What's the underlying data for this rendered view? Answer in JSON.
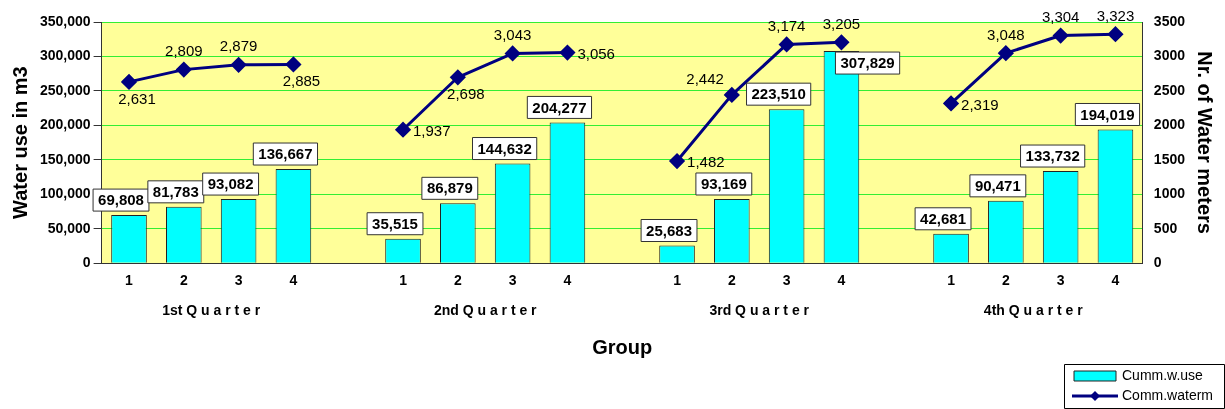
{
  "chart_data": {
    "type": "bar",
    "xlabel": "Group",
    "ylabel": "Water use in m3",
    "y2label": "Nr. of Water meters",
    "categories": [
      "1",
      "2",
      "3",
      "4",
      null,
      "1",
      "2",
      "3",
      "4",
      null,
      "1",
      "2",
      "3",
      "4",
      null,
      "1",
      "2",
      "3",
      "4"
    ],
    "series": [
      {
        "name": "Cumm.w.use",
        "color": "#00ffff",
        "values": [
          69808,
          81783,
          93082,
          136667,
          null,
          35515,
          86879,
          144632,
          204277,
          null,
          25683,
          93169,
          223510,
          307829,
          null,
          42681,
          90471,
          133732,
          194019
        ],
        "value_labels": [
          "69,808",
          "81,783",
          "93,082",
          "136,667",
          null,
          "35,515",
          "86,879",
          "144,632",
          "204,277",
          null,
          "25,683",
          "93,169",
          "223,510",
          "307,829",
          null,
          "42,681",
          "90,471",
          "133,732",
          "194,019"
        ]
      },
      {
        "name": "Comm.waterm",
        "type": "line",
        "axis": "y2",
        "color": "#000080",
        "values": [
          2631,
          2809,
          2879,
          2885,
          null,
          1937,
          2698,
          3043,
          3056,
          null,
          1482,
          2442,
          3174,
          3205,
          null,
          2319,
          3048,
          3304,
          3323
        ],
        "value_labels": [
          "2,631",
          "2,809",
          "2,879",
          "2,885",
          null,
          "1,937",
          "2,698",
          "3,043",
          "3,056",
          null,
          "1,482",
          "2,442",
          "3,174",
          "3,205",
          null,
          "2,319",
          "3,048",
          "3,304",
          "3,323"
        ]
      }
    ],
    "ylim": [
      0,
      350000
    ],
    "yticks": [
      {
        "value": 0,
        "label": "0"
      },
      {
        "value": 50000,
        "label": "50,000"
      },
      {
        "value": 100000,
        "label": "100,000"
      },
      {
        "value": 150000,
        "label": "150,000"
      },
      {
        "value": 200000,
        "label": "200,000"
      },
      {
        "value": 250000,
        "label": "250,000"
      },
      {
        "value": 300000,
        "label": "300,000"
      },
      {
        "value": 350000,
        "label": "350,000"
      }
    ],
    "y2lim": [
      0,
      3500
    ],
    "y2ticks": [
      0,
      500,
      1000,
      1500,
      2000,
      2500,
      3000,
      3500
    ],
    "annotations": [
      "1st Q u a r t e r",
      "2nd Q u a r t e r",
      "3rd Q u a r t e r",
      "4th Q u a r t e r"
    ],
    "grid": "y",
    "legend": "bottom right",
    "marker": "diamond",
    "line_style": "solid"
  }
}
